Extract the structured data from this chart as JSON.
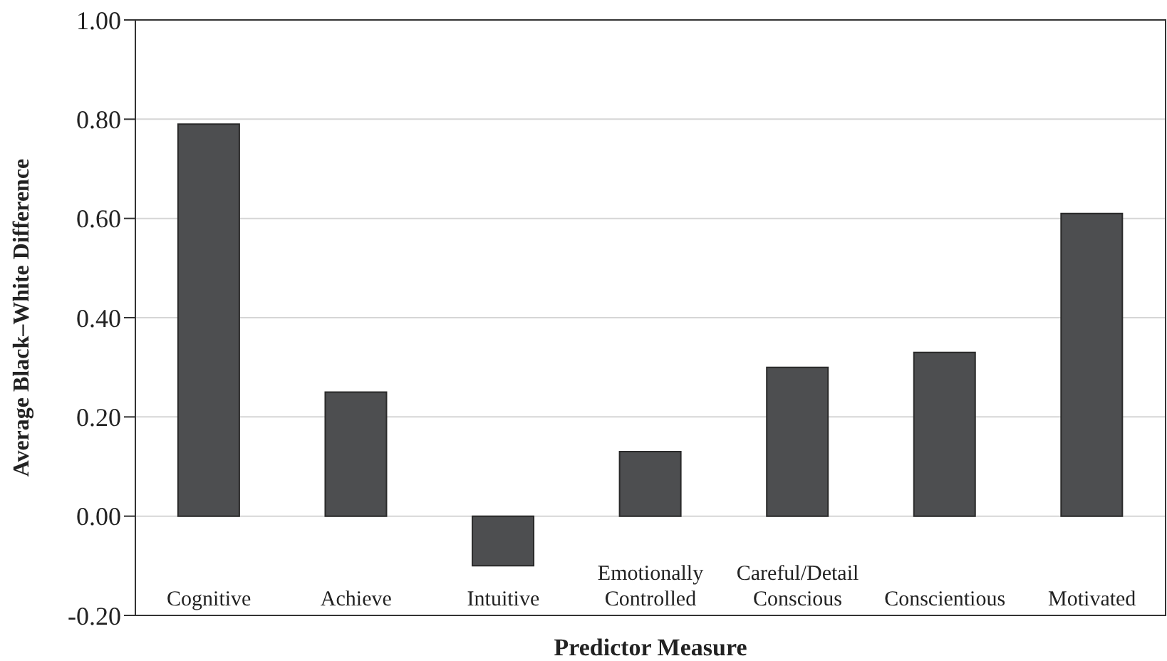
{
  "chart_data": {
    "type": "bar",
    "xlabel": "Predictor Measure",
    "ylabel": "Average Black–White Difference",
    "categories": [
      "Cognitive",
      "Achieve",
      "Intuitive",
      "Emotionally Controlled",
      "Careful/Detail Conscious",
      "Conscientious",
      "Motivated"
    ],
    "values": [
      0.79,
      0.25,
      -0.1,
      0.13,
      0.3,
      0.33,
      0.61
    ],
    "color": "#4d4e50",
    "ylim": [
      -0.2,
      1.0
    ],
    "yticks": [
      {
        "value": -0.2,
        "label": "-0.20"
      },
      {
        "value": 0,
        "label": "0.00"
      },
      {
        "value": 0.2,
        "label": "0.20"
      },
      {
        "value": 0.4,
        "label": "0.40"
      },
      {
        "value": 0.6,
        "label": "0.60"
      },
      {
        "value": 0.8,
        "label": "0.80"
      },
      {
        "value": 1.0,
        "label": "1.00"
      }
    ],
    "grid": "y"
  }
}
